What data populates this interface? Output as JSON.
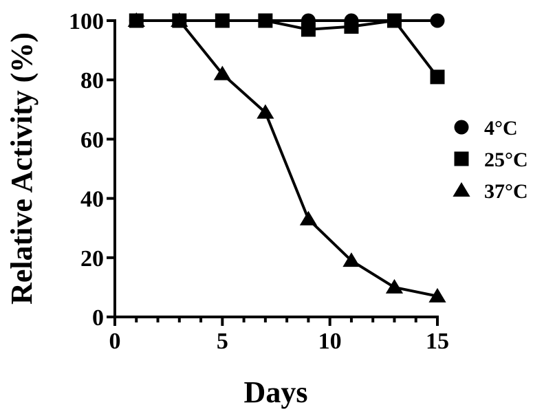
{
  "chart_data": {
    "type": "line",
    "title": "",
    "xlabel": "Days",
    "ylabel": "Relative Activity (%)",
    "xlim": [
      0,
      15
    ],
    "ylim": [
      0,
      100
    ],
    "x_ticks": [
      0,
      5,
      10,
      15
    ],
    "x_minor_ticks": [
      1,
      2,
      3,
      4,
      6,
      7,
      8,
      9,
      11,
      12,
      13,
      14
    ],
    "y_ticks": [
      0,
      20,
      40,
      60,
      80,
      100
    ],
    "grid": false,
    "legend_position": "right",
    "series": [
      {
        "name": "4°C",
        "marker": "circle",
        "x": [
          1,
          3,
          5,
          7,
          9,
          11,
          13,
          15
        ],
        "y": [
          100,
          100,
          100,
          100,
          100,
          100,
          100,
          100
        ]
      },
      {
        "name": "25°C",
        "marker": "square",
        "x": [
          1,
          3,
          5,
          7,
          9,
          11,
          13,
          15
        ],
        "y": [
          100,
          100,
          100,
          100,
          97,
          98,
          100,
          81
        ]
      },
      {
        "name": "37°C",
        "marker": "triangle",
        "x": [
          1,
          3,
          5,
          7,
          9,
          11,
          13,
          15
        ],
        "y": [
          100,
          100,
          82,
          69,
          33,
          19,
          10,
          7
        ]
      }
    ]
  }
}
